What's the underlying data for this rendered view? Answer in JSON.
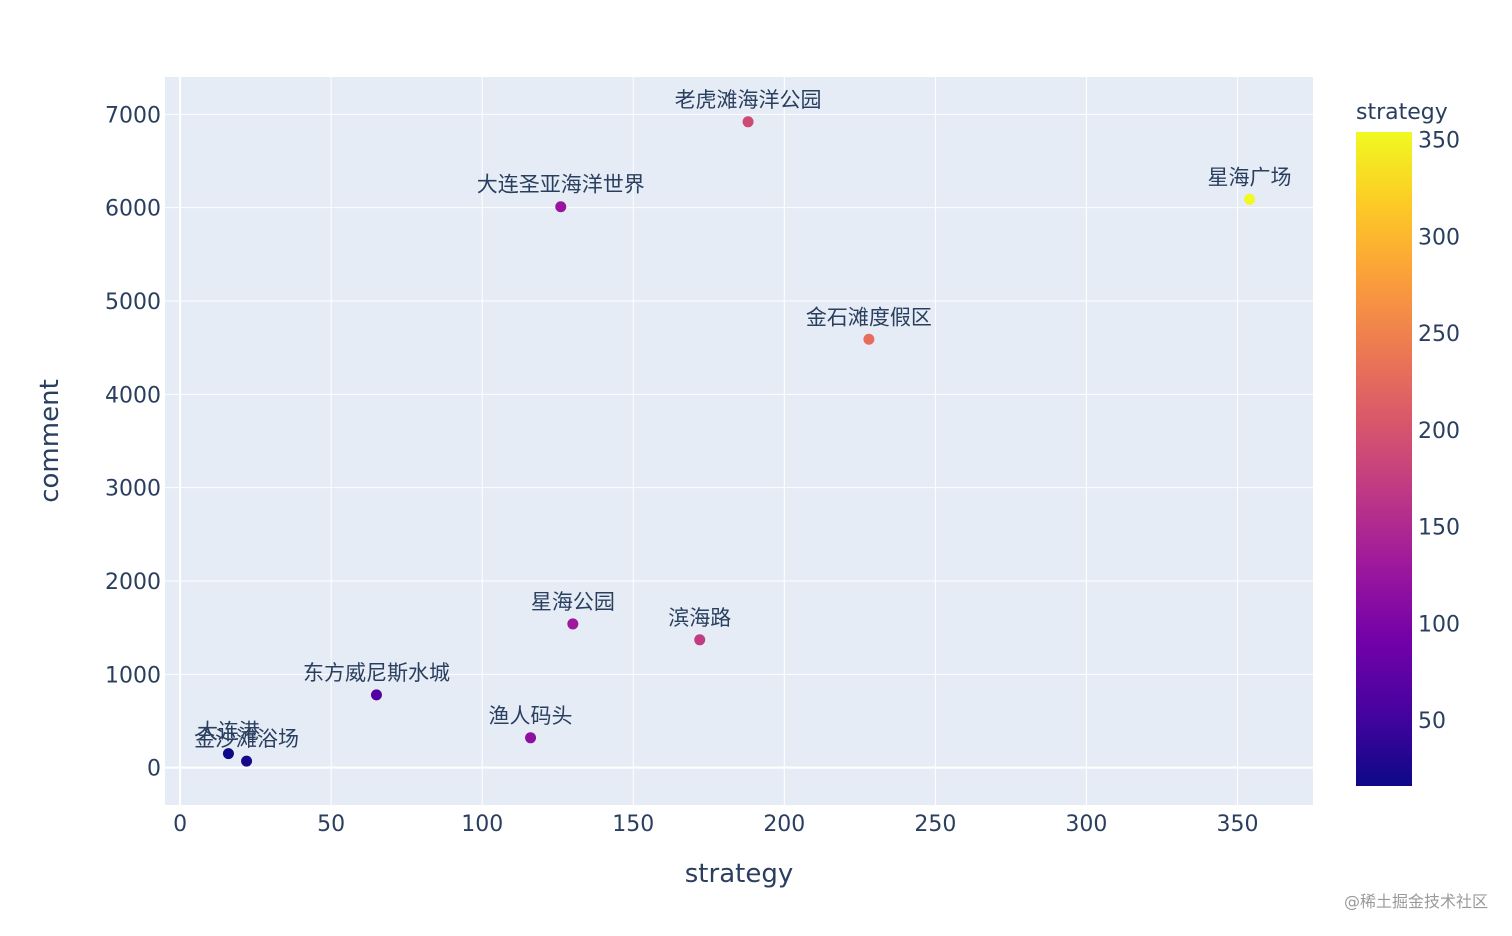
{
  "chart_data": {
    "type": "scatter",
    "xlabel": "strategy",
    "ylabel": "comment",
    "xlim": [
      -5,
      375
    ],
    "ylim": [
      -400,
      7400
    ],
    "x_ticks": [
      0,
      50,
      100,
      150,
      200,
      250,
      300,
      350
    ],
    "y_ticks": [
      0,
      1000,
      2000,
      3000,
      4000,
      5000,
      6000,
      7000
    ],
    "grid": true,
    "color_by": "strategy",
    "colorbar": {
      "title": "strategy",
      "range": [
        16,
        354
      ],
      "ticks": [
        50,
        100,
        150,
        200,
        250,
        300,
        350
      ],
      "colorscale": "plasma"
    },
    "points": [
      {
        "name": "老虎滩海洋公园",
        "x": 188,
        "y": 6920
      },
      {
        "name": "大连圣亚海洋世界",
        "x": 126,
        "y": 6010
      },
      {
        "name": "星海广场",
        "x": 354,
        "y": 6090
      },
      {
        "name": "金石滩度假区",
        "x": 228,
        "y": 4590
      },
      {
        "name": "星海公园",
        "x": 130,
        "y": 1540
      },
      {
        "name": "滨海路",
        "x": 172,
        "y": 1370
      },
      {
        "name": "东方威尼斯水城",
        "x": 65,
        "y": 780
      },
      {
        "name": "渔人码头",
        "x": 116,
        "y": 320
      },
      {
        "name": "大连港",
        "x": 16,
        "y": 150
      },
      {
        "name": "金沙滩浴场",
        "x": 22,
        "y": 70
      }
    ]
  },
  "watermark": "@稀土掘金技术社区"
}
